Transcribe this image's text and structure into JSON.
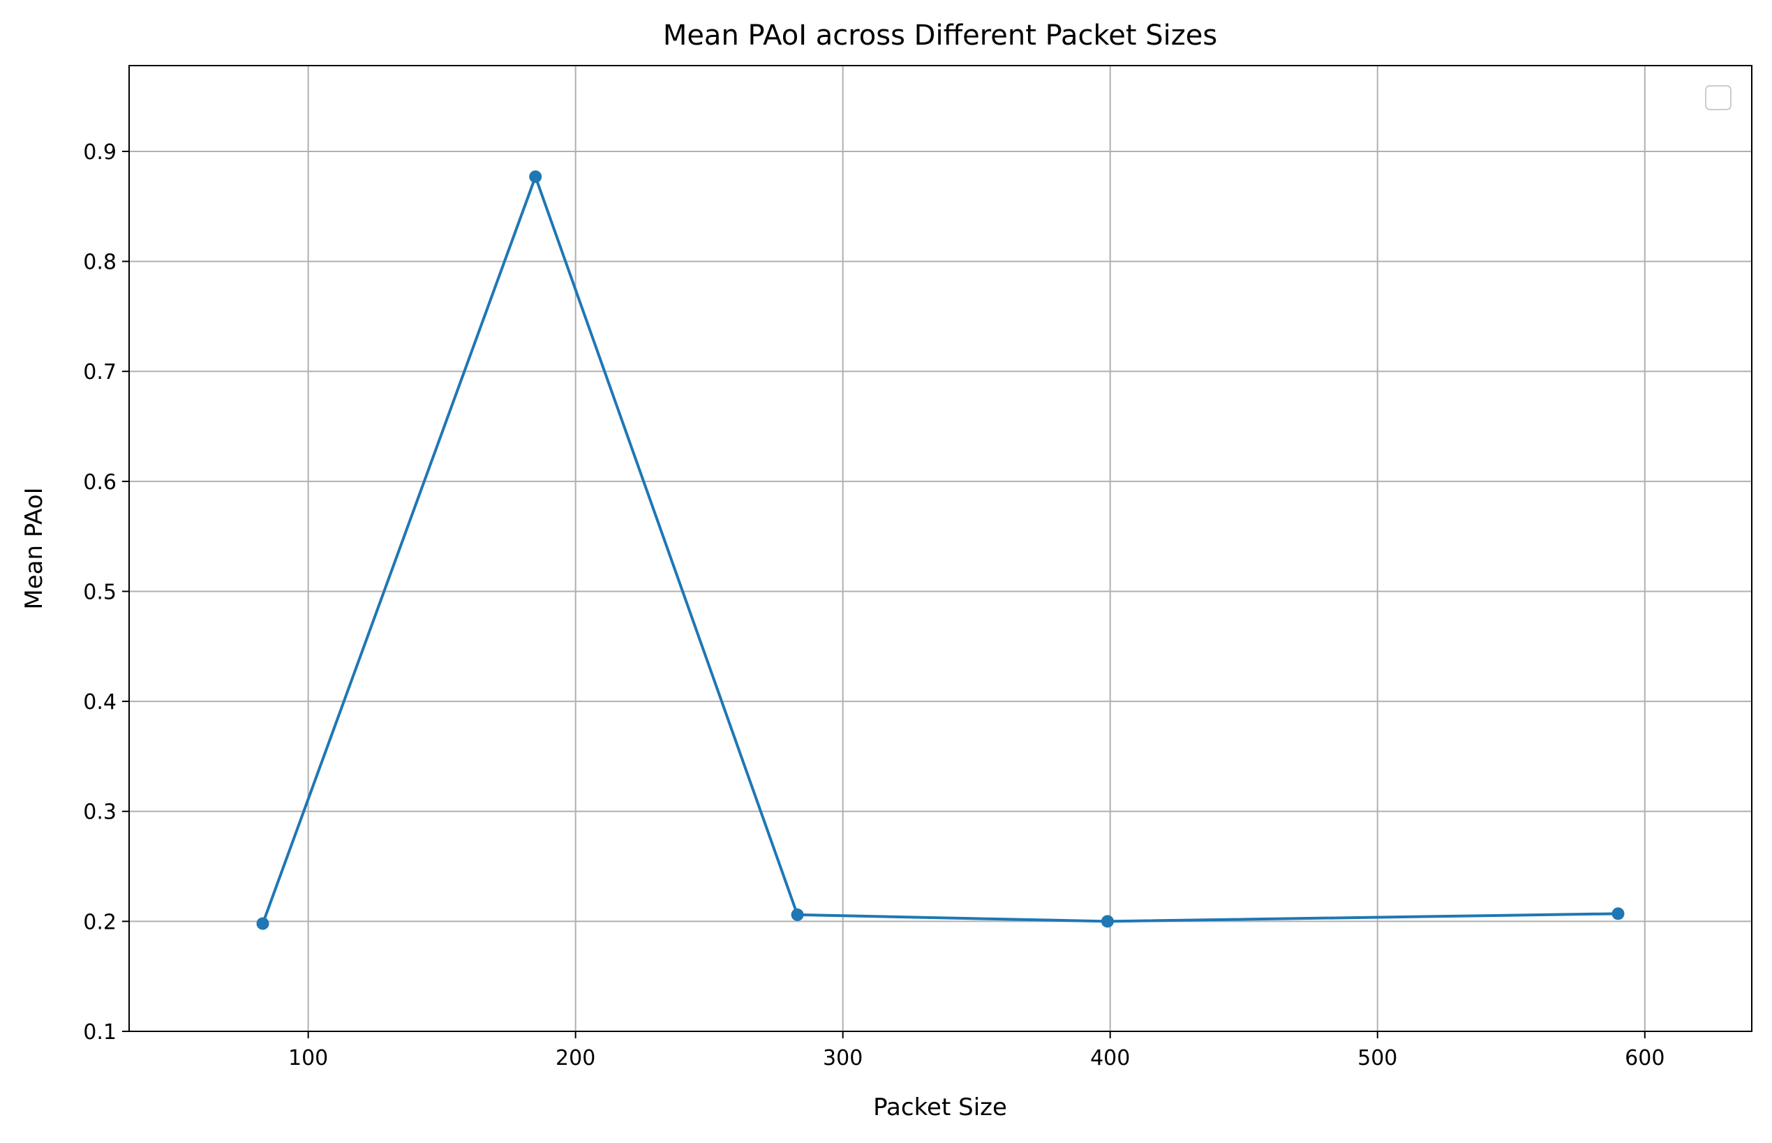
{
  "chart_data": {
    "type": "line",
    "title": "Mean PAoI across Different Packet Sizes",
    "xlabel": "Packet Size",
    "ylabel": "Mean PAoI",
    "xlim": [
      33,
      640
    ],
    "ylim": [
      0.1,
      0.978
    ],
    "xticks": [
      100,
      200,
      300,
      400,
      500,
      600
    ],
    "yticks": [
      0.1,
      0.2,
      0.3,
      0.4,
      0.5,
      0.6,
      0.7,
      0.8,
      0.9
    ],
    "grid": true,
    "legend": "top-right",
    "legend_entries": [],
    "series": [
      {
        "color": "#1f77b4",
        "marker": "circle",
        "x": [
          83,
          185,
          283,
          399,
          590
        ],
        "y": [
          0.198,
          0.877,
          0.206,
          0.2,
          0.207
        ]
      }
    ]
  }
}
